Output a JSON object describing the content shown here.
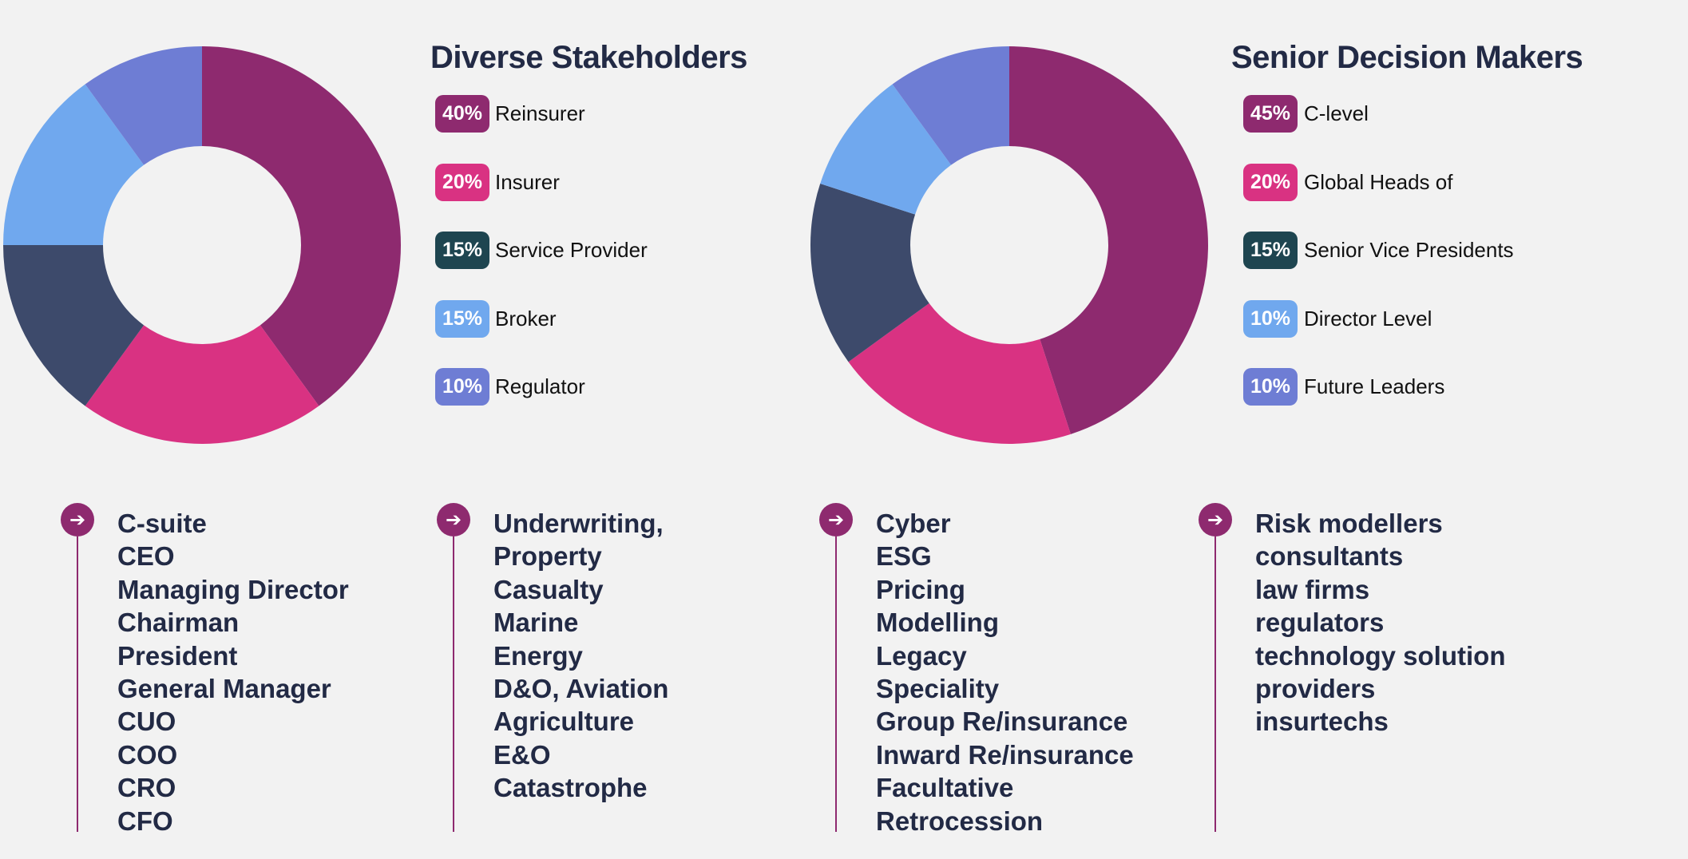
{
  "chart_data": [
    {
      "type": "pie",
      "title": "Diverse Stakeholders",
      "categories": [
        "Reinsurer",
        "Insurer",
        "Service Provider",
        "Broker",
        "Regulator"
      ],
      "values": [
        40,
        20,
        15,
        15,
        10
      ],
      "labels": [
        "40%",
        "20%",
        "15%",
        "15%",
        "10%"
      ],
      "slice_colors": [
        "#8e2a6f",
        "#d93282",
        "#3d4a6b",
        "#70a8ee",
        "#6e7dd4"
      ],
      "badge_colors": [
        "#8e2a6f",
        "#d93282",
        "#1e4550",
        "#70a8ee",
        "#6e7dd4"
      ]
    },
    {
      "type": "pie",
      "title": "Senior Decision Makers",
      "categories": [
        "C-level",
        "Global Heads of",
        "Senior Vice Presidents",
        "Director Level",
        "Future Leaders"
      ],
      "values": [
        45,
        20,
        15,
        10,
        10
      ],
      "labels": [
        "45%",
        "20%",
        "15%",
        "10%",
        "10%"
      ],
      "slice_colors": [
        "#8e2a6f",
        "#d93282",
        "#3d4a6b",
        "#70a8ee",
        "#6e7dd4"
      ],
      "badge_colors": [
        "#8e2a6f",
        "#d93282",
        "#1e4550",
        "#70a8ee",
        "#6e7dd4"
      ]
    }
  ],
  "lists": [
    {
      "icon": "arrow-right-icon",
      "items": [
        "C-suite",
        "CEO",
        "Managing Director",
        "Chairman",
        "President",
        "General Manager",
        "CUO",
        "COO",
        "CRO",
        "CFO"
      ]
    },
    {
      "icon": "arrow-right-icon",
      "items": [
        "Underwriting,",
        "Property",
        "Casualty",
        "Marine",
        "Energy",
        "D&O, Aviation",
        "Agriculture",
        "E&O",
        "Catastrophe"
      ]
    },
    {
      "icon": "arrow-right-icon",
      "items": [
        "Cyber",
        "ESG",
        "Pricing",
        "Modelling",
        "Legacy",
        "Speciality",
        "Group Re/insurance",
        "Inward Re/insurance",
        "Facultative",
        "Retrocession"
      ]
    },
    {
      "icon": "arrow-right-icon",
      "items": [
        "Risk modellers",
        "consultants",
        "law firms",
        "regulators",
        "technology solution",
        "providers",
        "insurtechs"
      ]
    }
  ],
  "arrow_glyph": "➔"
}
